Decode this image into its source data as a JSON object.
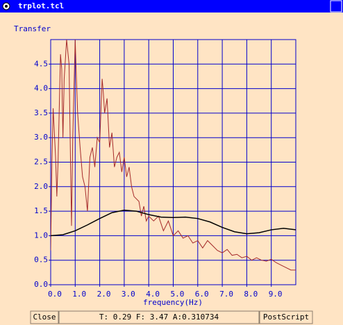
{
  "window": {
    "title": "trplot.tcl"
  },
  "chart_data": {
    "type": "line",
    "ylabel": "Transfer",
    "xlabel": "frequency(Hz)",
    "xlim": [
      0,
      10
    ],
    "ylim": [
      0,
      5
    ],
    "xticks": [
      {
        "value": 0,
        "label": "0.0"
      },
      {
        "value": 1,
        "label": "1.0"
      },
      {
        "value": 2,
        "label": "2.0"
      },
      {
        "value": 3,
        "label": "3.0"
      },
      {
        "value": 4,
        "label": "4.0"
      },
      {
        "value": 5,
        "label": "5.0"
      },
      {
        "value": 6,
        "label": "6.0"
      },
      {
        "value": 7,
        "label": "7.0"
      },
      {
        "value": 8,
        "label": "8.0"
      },
      {
        "value": 9,
        "label": "9.0"
      }
    ],
    "yticks": [
      {
        "value": 0,
        "label": "0.0"
      },
      0.5,
      {
        "value": 1,
        "label": "1.0"
      },
      1.5,
      {
        "value": 2,
        "label": "2.0"
      },
      2.5,
      {
        "value": 3,
        "label": "3.0"
      },
      3.5,
      {
        "value": 4,
        "label": "4.0"
      },
      4.5
    ],
    "grid": true,
    "grid_color": "#0000cc",
    "series": [
      {
        "color": "#a52a2a",
        "x": [
          0,
          0.05,
          0.1,
          0.2,
          0.25,
          0.3,
          0.4,
          0.45,
          0.5,
          0.55,
          0.65,
          0.75,
          0.8,
          0.85,
          0.9,
          1,
          1.05,
          1.1,
          1.2,
          1.3,
          1.4,
          1.5,
          1.6,
          1.7,
          1.8,
          1.9,
          2,
          2.1,
          2.15,
          2.2,
          2.3,
          2.4,
          2.5,
          2.6,
          2.7,
          2.8,
          2.9,
          3,
          3.1,
          3.2,
          3.3,
          3.4,
          3.6,
          3.7,
          3.8,
          3.9,
          4,
          4.2,
          4.4,
          4.6,
          4.8,
          5,
          5.2,
          5.4,
          5.6,
          5.8,
          6,
          6.2,
          6.4,
          6.6,
          6.8,
          7,
          7.2,
          7.4,
          7.6,
          7.8,
          8,
          8.2,
          8.4,
          8.6,
          8.8,
          9,
          9.2,
          9.4,
          9.6,
          9.8,
          10
        ],
        "values": [
          0.7,
          2.5,
          3.6,
          2.6,
          1.8,
          2.5,
          4.7,
          4.4,
          3.0,
          4.2,
          5.0,
          4.5,
          2.8,
          1.2,
          3.0,
          5.0,
          4.2,
          3.5,
          2.8,
          2.2,
          2.0,
          1.5,
          2.6,
          2.8,
          2.4,
          3.0,
          2.9,
          4.2,
          3.9,
          3.5,
          3.8,
          2.8,
          3.1,
          2.4,
          2.6,
          2.7,
          2.3,
          2.6,
          2.2,
          2.4,
          2.0,
          1.8,
          1.7,
          1.4,
          1.6,
          1.3,
          1.4,
          1.3,
          1.4,
          1.1,
          1.3,
          1.0,
          1.1,
          0.95,
          1.0,
          0.85,
          0.9,
          0.75,
          0.9,
          0.8,
          0.7,
          0.65,
          0.72,
          0.6,
          0.62,
          0.55,
          0.58,
          0.5,
          0.55,
          0.5,
          0.48,
          0.52,
          0.45,
          0.4,
          0.35,
          0.3,
          0.3
        ]
      },
      {
        "color": "#000000",
        "x": [
          0,
          0.5,
          1,
          1.5,
          2,
          2.5,
          3,
          3.5,
          4,
          4.5,
          5,
          5.5,
          6,
          6.5,
          7,
          7.5,
          8,
          8.5,
          9,
          9.5,
          10
        ],
        "values": [
          1.0,
          1.02,
          1.1,
          1.22,
          1.35,
          1.47,
          1.52,
          1.5,
          1.43,
          1.38,
          1.37,
          1.38,
          1.35,
          1.28,
          1.17,
          1.08,
          1.04,
          1.06,
          1.12,
          1.15,
          1.12
        ]
      }
    ]
  },
  "controls": {
    "close": "Close",
    "status": "T: 0.29 F: 3.47 A:0.310734",
    "postscript": "PostScript"
  }
}
